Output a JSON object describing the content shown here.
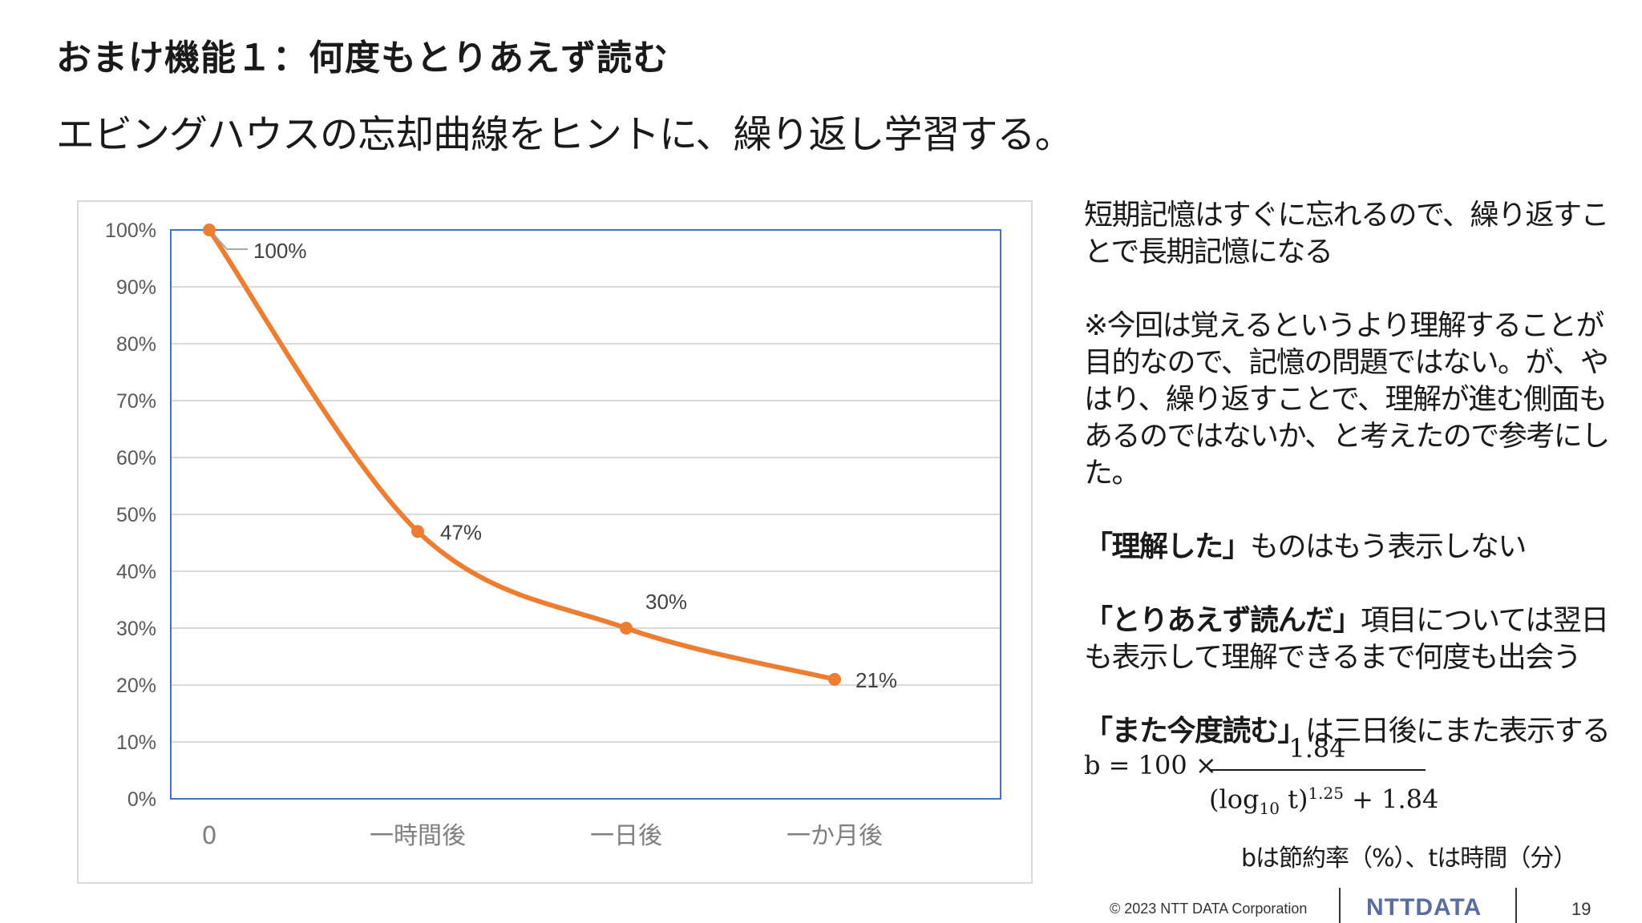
{
  "slide": {
    "title": "おまけ機能１：何度もとりあえず読む",
    "subtitle": "エビングハウスの忘却曲線をヒントに、繰り返し学習する。"
  },
  "notes": {
    "p1": "短期記憶はすぐに忘れるので、繰り返すことで長期記憶になる",
    "p2": "※今回は覚えるというより理解することが目的なので、記憶の問題ではない。が、やはり、繰り返すことで、理解が進む側面もあるのではないか、と考えたので参考にした。",
    "p3_bold": "「理解した」",
    "p3_rest": "ものはもう表示しない",
    "p4_bold": "「とりあえず読んだ」",
    "p4_rest": "項目については翌日も表示して理解できるまで何度も出会う",
    "p5_bold": "「また今度読む」",
    "p5_rest": "は三日後にまた表示する"
  },
  "formula": {
    "lhs": "b = 100 ×",
    "numerator": "1.84",
    "den_open": "(log",
    "den_sub": "10",
    "den_var": " t)",
    "den_sup": "1.25",
    "den_rest": " + 1.84"
  },
  "legend_note": "bは節約率（%）、tは時間（分）",
  "footer": {
    "copyright": "© 2023 NTT DATA Corporation",
    "logo": "NTTDATA",
    "page": "19"
  },
  "chart_data": {
    "type": "line",
    "categories": [
      "0",
      "一時間後",
      "一日後",
      "一か月後"
    ],
    "series": [
      {
        "values": [
          100,
          47,
          30,
          21
        ],
        "labels": [
          "100%",
          "47%",
          "30%",
          "21%"
        ],
        "color": "#ed7d31"
      }
    ],
    "ylim": [
      0,
      100
    ],
    "yticks": [
      "0%",
      "10%",
      "20%",
      "30%",
      "40%",
      "50%",
      "60%",
      "70%",
      "80%",
      "90%",
      "100%"
    ],
    "grid": true,
    "grid_color": "#d9d9d9",
    "axis_color": "#4472c4"
  }
}
